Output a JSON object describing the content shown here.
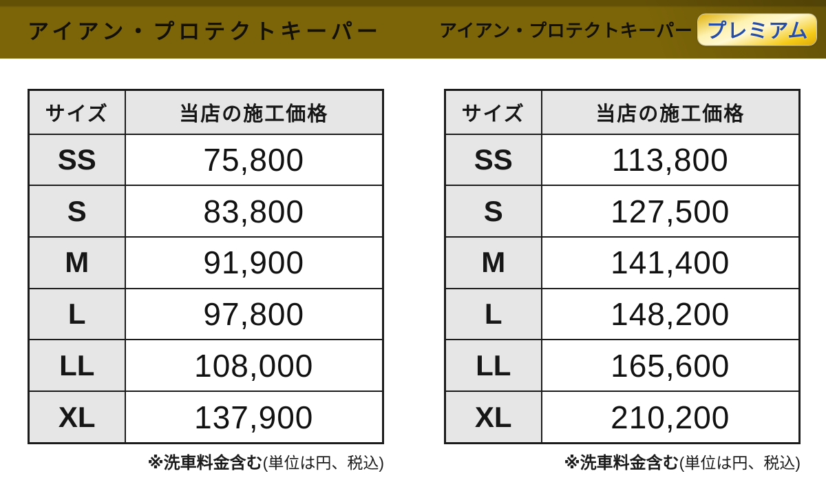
{
  "header": {
    "standard_title": "アイアン・プロテクトキーパー",
    "premium_title": "アイアン・プロテクトキーパー",
    "premium_badge": "プレミアム"
  },
  "colors": {
    "header_bar_olive": "#7c6508",
    "badge_gold": "#f4ca18",
    "badge_text_blue": "#274ea6",
    "table_border": "#1b1b1b",
    "shaded_cell_gray": "#e6e6e6",
    "page_background": "#ffffff"
  },
  "table_standard": {
    "columns": [
      "サイズ",
      "当店の施工価格"
    ],
    "rows": [
      {
        "size": "SS",
        "price": "75,800"
      },
      {
        "size": "S",
        "price": "83,800"
      },
      {
        "size": "M",
        "price": "91,900"
      },
      {
        "size": "L",
        "price": "97,800"
      },
      {
        "size": "LL",
        "price": "108,000"
      },
      {
        "size": "XL",
        "price": "137,900"
      }
    ]
  },
  "table_premium": {
    "columns": [
      "サイズ",
      "当店の施工価格"
    ],
    "rows": [
      {
        "size": "SS",
        "price": "113,800"
      },
      {
        "size": "S",
        "price": "127,500"
      },
      {
        "size": "M",
        "price": "141,400"
      },
      {
        "size": "L",
        "price": "148,200"
      },
      {
        "size": "LL",
        "price": "165,600"
      },
      {
        "size": "XL",
        "price": "210,200"
      }
    ]
  },
  "footnote": {
    "bold": "※洗車料金含む",
    "rest": "(単位は円、税込)"
  }
}
